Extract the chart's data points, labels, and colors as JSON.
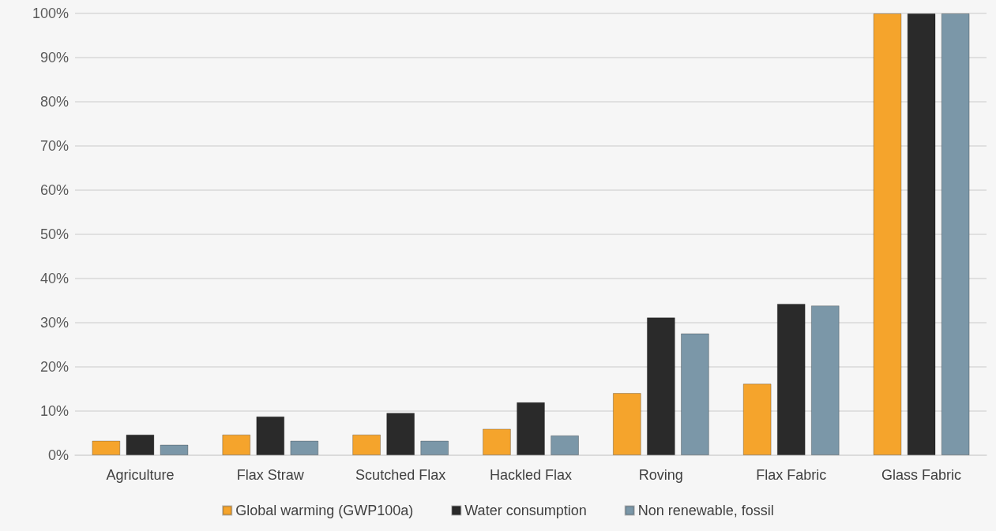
{
  "chart_data": {
    "type": "bar",
    "categories": [
      "Agriculture",
      "Flax Straw",
      "Scutched Flax",
      "Hackled Flax",
      "Roving",
      "Flax Fabric",
      "Glass Fabric"
    ],
    "series": [
      {
        "name": "Global warming (GWP100a)",
        "color": "#f5a42c",
        "values": [
          3.3,
          4.7,
          4.7,
          6.0,
          14.1,
          16.2,
          100
        ]
      },
      {
        "name": "Water consumption",
        "color": "#2a2a2a",
        "values": [
          4.7,
          8.8,
          9.6,
          12.0,
          31.2,
          34.3,
          100
        ]
      },
      {
        "name": "Non renewable, fossil",
        "color": "#7b97a8",
        "values": [
          2.4,
          3.3,
          3.3,
          4.5,
          27.6,
          33.9,
          100
        ]
      }
    ],
    "ylim": [
      0,
      100
    ],
    "yticks": [
      {
        "value": 0,
        "label": "0%"
      },
      {
        "value": 10,
        "label": "10%"
      },
      {
        "value": 20,
        "label": "20%"
      },
      {
        "value": 30,
        "label": "30%"
      },
      {
        "value": 40,
        "label": "40%"
      },
      {
        "value": 50,
        "label": "50%"
      },
      {
        "value": 60,
        "label": "60%"
      },
      {
        "value": 70,
        "label": "70%"
      },
      {
        "value": 80,
        "label": "80%"
      },
      {
        "value": 90,
        "label": "90%"
      },
      {
        "value": 100,
        "label": "100%"
      }
    ],
    "grid": "y",
    "legend": "bottom"
  }
}
